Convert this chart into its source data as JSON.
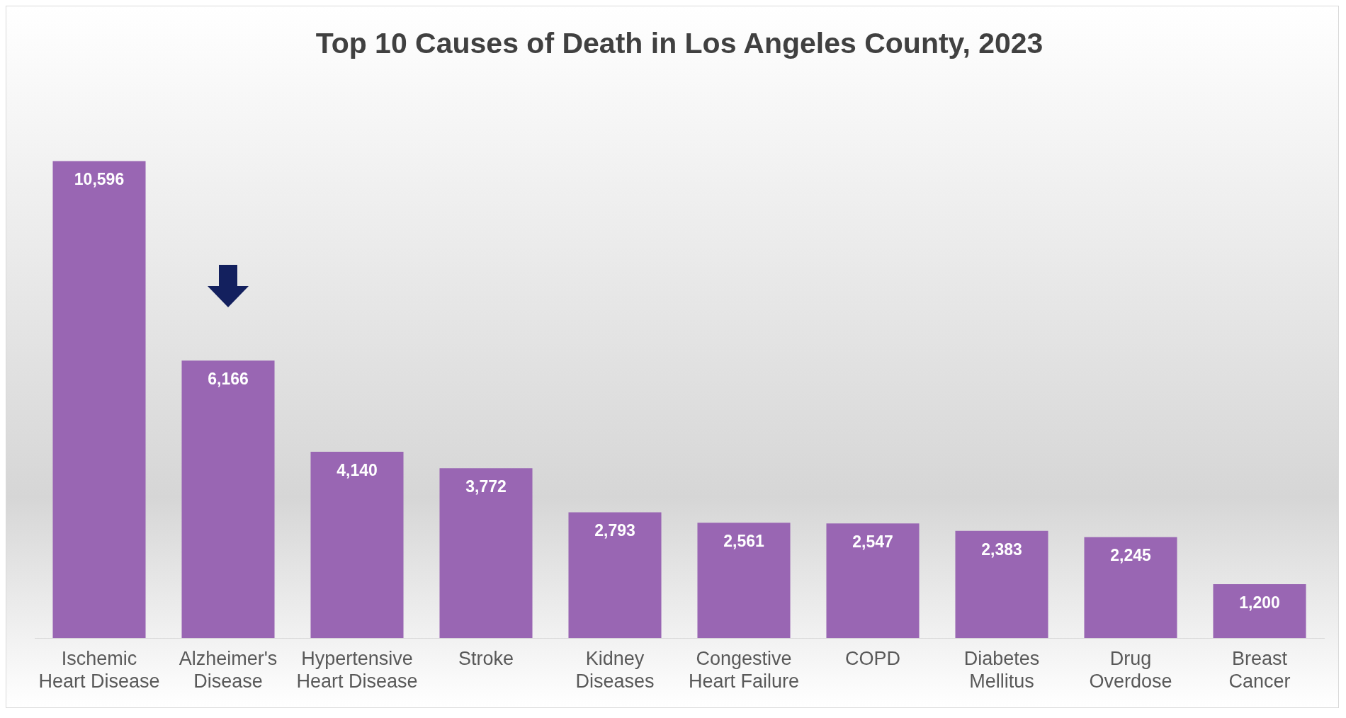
{
  "chart_data": {
    "type": "bar",
    "title": "Top 10 Causes of Death in Los Angeles County, 2023",
    "categories": [
      "Ischemic Heart Disease",
      "Alzheimer's Disease",
      "Hypertensive Heart Disease",
      "Stroke",
      "Kidney Diseases",
      "Congestive Heart Failure",
      "COPD",
      "Diabetes Mellitus",
      "Drug Overdose",
      "Breast Cancer"
    ],
    "values": [
      10596,
      6166,
      4140,
      3772,
      2793,
      2561,
      2547,
      2383,
      2245,
      1200
    ],
    "value_labels": [
      "10,596",
      "6,166",
      "4,140",
      "3,772",
      "2,793",
      "2,561",
      "2,547",
      "2,383",
      "2,245",
      "1,200"
    ],
    "color": "#9966b3",
    "grid": false,
    "legend": false
  }
}
